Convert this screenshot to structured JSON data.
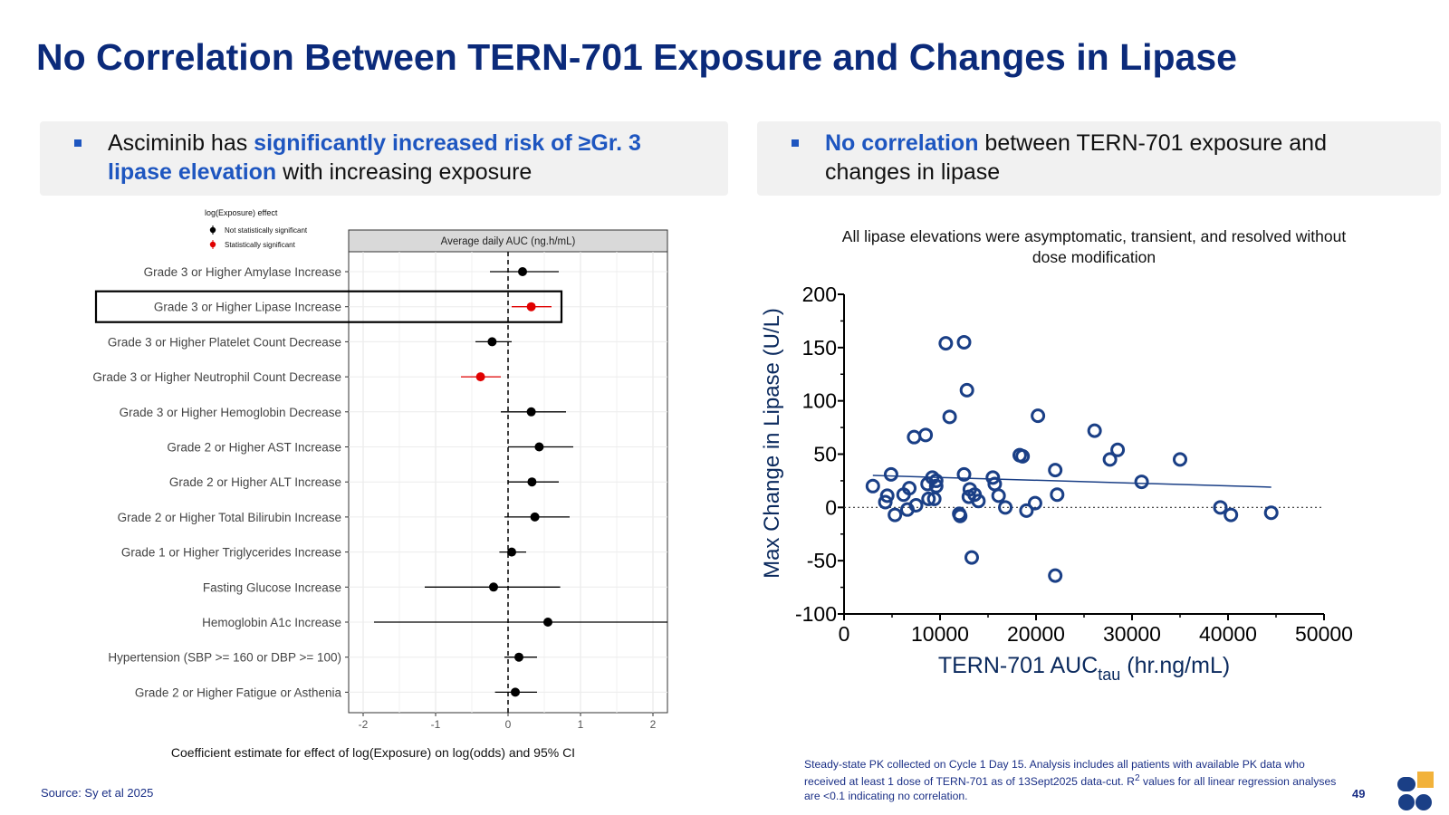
{
  "slide": {
    "title": "No Correlation Between TERN-701 Exposure and Changes in Lipase",
    "left_bullet": {
      "pre": "Asciminib has ",
      "highlight": "significantly increased risk of ≥Gr. 3 lipase elevation",
      "post": " with increasing exposure"
    },
    "right_bullet": {
      "highlight": "No correlation",
      "post": " between TERN-701 exposure and changes in lipase"
    },
    "source": "Source: Sy et al 2025",
    "footnote_1": "Steady-state PK collected on Cycle 1 Day 15. Analysis includes all patients with available PK data who received at least 1 dose of TERN-701 as of 13Sept2025 data-cut. R",
    "footnote_sup": "2",
    "footnote_2": " values for all linear regression analyses are <0.1 indicating no correlation.",
    "page_number": "49",
    "colors": {
      "title": "#0b2a7a",
      "accent": "#1e56c0",
      "scatter": "#1a3f86",
      "significant": "#e00000",
      "not_significant": "#000000"
    }
  },
  "chart_data": [
    {
      "type": "forest",
      "panel_title": "Average daily AUC (ng.h/mL)",
      "legend_title": "log(Exposure) effect",
      "legend_items": [
        {
          "label": "Not statistically significant",
          "color": "#000000"
        },
        {
          "label": "Statistically significant",
          "color": "#e00000"
        }
      ],
      "xlabel": "Coefficient estimate for effect of log(Exposure) on log(odds) and 95% CI",
      "xlim": [
        -2.2,
        2.2
      ],
      "xticks": [
        -2,
        -1,
        0,
        1,
        2
      ],
      "reference_line": 0,
      "highlighted_row": "Grade 3 or Higher Lipase Increase",
      "rows": [
        {
          "label": "Grade 3 or Higher Amylase Increase",
          "estimate": 0.2,
          "ci": [
            -0.25,
            0.7
          ],
          "significant": false
        },
        {
          "label": "Grade 3 or Higher Lipase Increase",
          "estimate": 0.32,
          "ci": [
            0.05,
            0.6
          ],
          "significant": true
        },
        {
          "label": "Grade 3 or Higher Platelet Count Decrease",
          "estimate": -0.22,
          "ci": [
            -0.45,
            0.05
          ],
          "significant": false
        },
        {
          "label": "Grade 3 or Higher Neutrophil Count Decrease",
          "estimate": -0.38,
          "ci": [
            -0.65,
            -0.1
          ],
          "significant": true
        },
        {
          "label": "Grade 3 or Higher Hemoglobin Decrease",
          "estimate": 0.32,
          "ci": [
            -0.1,
            0.8
          ],
          "significant": false
        },
        {
          "label": "Grade 2 or Higher AST Increase",
          "estimate": 0.43,
          "ci": [
            0.0,
            0.9
          ],
          "significant": false
        },
        {
          "label": "Grade 2 or Higher ALT Increase",
          "estimate": 0.33,
          "ci": [
            0.0,
            0.7
          ],
          "significant": false
        },
        {
          "label": "Grade 2 or Higher Total Bilirubin Increase",
          "estimate": 0.37,
          "ci": [
            -0.05,
            0.85
          ],
          "significant": false
        },
        {
          "label": "Grade 1 or Higher Triglycerides Increase",
          "estimate": 0.05,
          "ci": [
            -0.12,
            0.25
          ],
          "significant": false
        },
        {
          "label": "Fasting Glucose Increase",
          "estimate": -0.2,
          "ci": [
            -1.15,
            0.72
          ],
          "significant": false
        },
        {
          "label": "Hemoglobin A1c Increase",
          "estimate": 0.55,
          "ci": [
            -1.85,
            2.2
          ],
          "significant": false
        },
        {
          "label": "Hypertension (SBP >= 160 or DBP >= 100)",
          "estimate": 0.15,
          "ci": [
            -0.05,
            0.4
          ],
          "significant": false
        },
        {
          "label": "Grade 2 or Higher Fatigue or Asthenia",
          "estimate": 0.1,
          "ci": [
            -0.18,
            0.4
          ],
          "significant": false
        }
      ]
    },
    {
      "type": "scatter",
      "title": "All lipase elevations were asymptomatic, transient, and resolved without dose modification",
      "xlabel_main": "TERN-701 AUC",
      "xlabel_sub": "tau",
      "xlabel_unit": " (hr.ng/mL)",
      "ylabel": "Max Change in Lipase (U/L)",
      "xlim": [
        0,
        50000
      ],
      "ylim": [
        -100,
        200
      ],
      "xticks": [
        0,
        10000,
        20000,
        30000,
        40000,
        50000
      ],
      "yticks": [
        -100,
        -50,
        0,
        50,
        100,
        150,
        200
      ],
      "zero_line": "dotted",
      "regression_line": {
        "x": [
          3000,
          44500
        ],
        "y": [
          30,
          19
        ]
      },
      "points": [
        [
          3000,
          20
        ],
        [
          4300,
          5
        ],
        [
          4500,
          11
        ],
        [
          4900,
          31
        ],
        [
          5300,
          -7
        ],
        [
          6200,
          12
        ],
        [
          6600,
          -2
        ],
        [
          6800,
          18
        ],
        [
          7500,
          2
        ],
        [
          7300,
          66
        ],
        [
          8500,
          68
        ],
        [
          8700,
          22
        ],
        [
          8800,
          8
        ],
        [
          9200,
          28
        ],
        [
          9400,
          8
        ],
        [
          9600,
          20
        ],
        [
          9600,
          25
        ],
        [
          10600,
          154
        ],
        [
          11000,
          85
        ],
        [
          12000,
          -6
        ],
        [
          12100,
          -8
        ],
        [
          12500,
          155
        ],
        [
          12500,
          31
        ],
        [
          12800,
          110
        ],
        [
          13000,
          10
        ],
        [
          13100,
          17
        ],
        [
          13300,
          -47
        ],
        [
          13600,
          12
        ],
        [
          14000,
          6
        ],
        [
          15500,
          28
        ],
        [
          15700,
          22
        ],
        [
          16100,
          11
        ],
        [
          16800,
          0
        ],
        [
          18300,
          49
        ],
        [
          18600,
          48
        ],
        [
          19000,
          -3
        ],
        [
          19900,
          4
        ],
        [
          20200,
          86
        ],
        [
          22000,
          35
        ],
        [
          22000,
          -64
        ],
        [
          22200,
          12
        ],
        [
          26100,
          72
        ],
        [
          27700,
          45
        ],
        [
          28500,
          54
        ],
        [
          31000,
          24
        ],
        [
          35000,
          45
        ],
        [
          39200,
          0
        ],
        [
          40300,
          -7
        ],
        [
          44500,
          -5
        ]
      ]
    }
  ]
}
